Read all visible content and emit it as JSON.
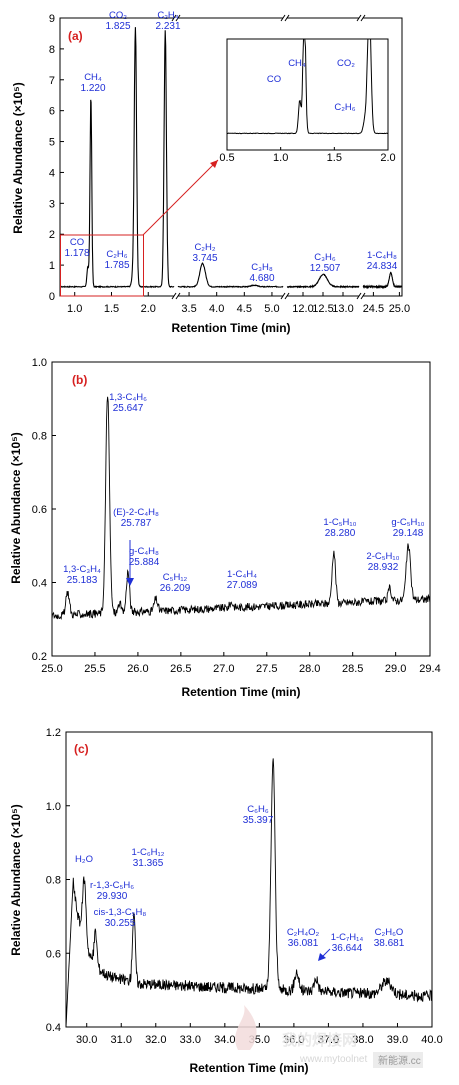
{
  "chart_data": [
    {
      "type": "line",
      "panel_label": "(a)",
      "xlabel": "Retention Time (min)",
      "ylabel": "Relative Abundance (×10⁵)",
      "ylim": [
        0,
        9
      ],
      "y_ticks": [
        "0",
        "1",
        "2",
        "3",
        "4",
        "5",
        "6",
        "7",
        "8",
        "9"
      ],
      "segments": [
        {
          "range": [
            0.8,
            2.35
          ],
          "ticks": [
            "1.0",
            "1.5",
            "2.0"
          ]
        },
        {
          "range": [
            3.3,
            5.2
          ],
          "ticks": [
            "3.5",
            "4.0",
            "4.5",
            "5.0"
          ]
        },
        {
          "range": [
            11.6,
            13.4
          ],
          "ticks": [
            "12.0",
            "12.5",
            "13.0"
          ]
        },
        {
          "range": [
            24.3,
            25.05
          ],
          "ticks": [
            "24.5",
            "25.0"
          ]
        }
      ],
      "baseline": 0.3,
      "peaks": [
        {
          "name": "CO",
          "rt": "1.178",
          "x": 1.178,
          "y": 0.95,
          "w": 0.012
        },
        {
          "name": "CH₄",
          "rt": "1.220",
          "x": 1.22,
          "y": 6.5,
          "w": 0.012
        },
        {
          "name": "C₂H₆",
          "rt": "1.785",
          "x": 1.785,
          "y": 0.55,
          "w": 0.015
        },
        {
          "name": "CO₂",
          "rt": "1.825",
          "x": 1.825,
          "y": 8.7,
          "w": 0.016
        },
        {
          "name": "C₂H₄",
          "rt": "2.231",
          "x": 2.231,
          "y": 8.6,
          "w": 0.016
        },
        {
          "name": "C₂H₂",
          "rt": "3.745",
          "x": 3.745,
          "y": 1.05,
          "w": 0.05
        },
        {
          "name": "C₃H₈",
          "rt": "4.680",
          "x": 4.68,
          "y": 0.35,
          "w": 0.05
        },
        {
          "name": "C₃H₆",
          "rt": "12.507",
          "x": 12.507,
          "y": 0.7,
          "w": 0.1
        },
        {
          "name": "1-C₄H₈",
          "rt": "24.834",
          "x": 24.834,
          "y": 0.75,
          "w": 0.03
        }
      ],
      "inset": {
        "xlim": [
          0.5,
          2.0
        ],
        "ylim": [
          0,
          2
        ],
        "x_ticks": [
          "0.5",
          "1.0",
          "1.5",
          "2.0"
        ],
        "labels": [
          "CO",
          "CH₄",
          "CO₂",
          "C₂H₆"
        ]
      }
    },
    {
      "type": "line",
      "panel_label": "(b)",
      "xlabel": "Retention Time (min)",
      "ylabel": "Relative Abundance (×10⁵)",
      "xlim": [
        25.0,
        29.4
      ],
      "ylim": [
        0.2,
        1.0
      ],
      "x_ticks": [
        "25.0",
        "25.5",
        "26.0",
        "26.5",
        "27.0",
        "27.5",
        "28.0",
        "28.5",
        "29.0",
        "29.4"
      ],
      "y_ticks": [
        "0.2",
        "0.4",
        "0.6",
        "0.8",
        "1.0"
      ],
      "baseline_start": 0.31,
      "baseline_end": 0.355,
      "peaks": [
        {
          "name": "1,3-C₃H₄",
          "rt": "25.183",
          "x": 25.183,
          "y": 0.375,
          "w": 0.02
        },
        {
          "name": "1,3-C₄H₆",
          "rt": "25.647",
          "x": 25.647,
          "y": 0.915,
          "w": 0.022
        },
        {
          "name": "(E)-2-C₄H₈",
          "rt": "25.787",
          "x": 25.787,
          "y": 0.345,
          "w": 0.015
        },
        {
          "name": "g-C₄H₈",
          "rt": "25.884",
          "x": 25.884,
          "y": 0.43,
          "w": 0.018
        },
        {
          "name": "C₅H₁₂",
          "rt": "26.209",
          "x": 26.209,
          "y": 0.355,
          "w": 0.02
        },
        {
          "name": "1-C₄H₄",
          "rt": "27.089",
          "x": 27.089,
          "y": 0.345,
          "w": 0.02
        },
        {
          "name": "1-C₅H₁₀",
          "rt": "28.280",
          "x": 28.28,
          "y": 0.485,
          "w": 0.02
        },
        {
          "name": "2-C₅H₁₀",
          "rt": "28.932",
          "x": 28.932,
          "y": 0.385,
          "w": 0.018
        },
        {
          "name": "g-C₅H₁₀",
          "rt": "29.148",
          "x": 29.148,
          "y": 0.5,
          "w": 0.025
        }
      ]
    },
    {
      "type": "line",
      "panel_label": "(c)",
      "xlabel": "Retention Time (min)",
      "ylabel": "Relative Abundance (×10⁵)",
      "xlim": [
        29.4,
        40.0
      ],
      "ylim": [
        0.4,
        1.2
      ],
      "x_ticks": [
        "30.0",
        "31.0",
        "32.0",
        "33.0",
        "34.0",
        "35.0",
        "36.0",
        "37.0",
        "38.0",
        "39.0",
        "40.0"
      ],
      "y_ticks": [
        "0.4",
        "0.6",
        "0.8",
        "1.0",
        "1.2"
      ],
      "peaks": [
        {
          "name": "H₂O",
          "rt": "",
          "x": 29.65,
          "y": 0.82,
          "w": 0.06
        },
        {
          "name": "r-1,3-C₅H₆",
          "rt": "29.930",
          "x": 29.93,
          "y": 0.72,
          "w": 0.05
        },
        {
          "name": "cis-1,3-C₅H₈",
          "rt": "30.255",
          "x": 30.255,
          "y": 0.64,
          "w": 0.04
        },
        {
          "name": "1-C₆H₁₂",
          "rt": "31.365",
          "x": 31.365,
          "y": 0.74,
          "w": 0.04
        },
        {
          "name": "C₆H₆",
          "rt": "35.397",
          "x": 35.397,
          "y": 1.17,
          "w": 0.06
        },
        {
          "name": "C₂H₄O₂",
          "rt": "36.081",
          "x": 36.081,
          "y": 0.6,
          "w": 0.06
        },
        {
          "name": "1-C₇H₁₄",
          "rt": "36.644",
          "x": 36.644,
          "y": 0.585,
          "w": 0.06
        },
        {
          "name": "C₂H₆O",
          "rt": "38.681",
          "x": 38.681,
          "y": 0.585,
          "w": 0.15
        }
      ]
    }
  ],
  "watermark": {
    "text": "我的焊接网",
    "sub": "www.mytoolnet",
    "badge": "新能源.cc"
  }
}
